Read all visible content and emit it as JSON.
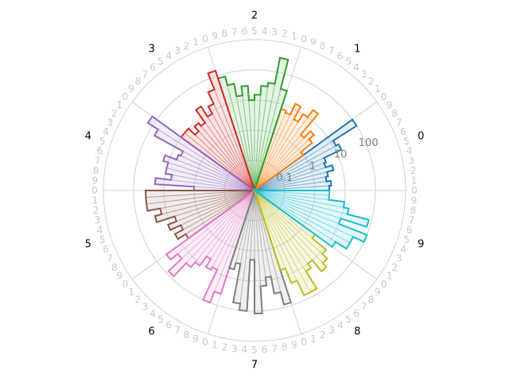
{
  "chart_data": {
    "type": "polar_histogram",
    "scale": "log",
    "r_ticks": [
      "0.1",
      "1",
      "10",
      "100"
    ],
    "r_tick_values": [
      0.1,
      1,
      10,
      100
    ],
    "r_range": [
      0.01,
      1000
    ],
    "grid": true,
    "legend": false,
    "sectors": [
      {
        "label": "0",
        "color": "#1f77b4",
        "values": [
          3.0,
          3.5,
          2.5,
          3.0,
          5.0,
          3.0,
          3.5,
          15.0,
          12.0,
          100.0
        ]
      },
      {
        "label": "1",
        "color": "#ff7f0e",
        "values": [
          1.0,
          3.0,
          5.0,
          2.5,
          20.0,
          10.0,
          5.0,
          15.0,
          6.0,
          7.0
        ]
      },
      {
        "label": "2",
        "color": "#2ca02c",
        "values": [
          30.0,
          300.0,
          40.0,
          30.0,
          15.0,
          10.0,
          30.0,
          15.0,
          40.0,
          80.0
        ]
      },
      {
        "label": "3",
        "color": "#d62728",
        "values": [
          150.0,
          40.0,
          15.0,
          8.0,
          20.0,
          6.0,
          8.0,
          5.0,
          10.0,
          10.0
        ]
      },
      {
        "label": "4",
        "color": "#9467bd",
        "values": [
          150.0,
          60.0,
          5.0,
          6.0,
          15.0,
          10.0,
          10.0,
          6.0,
          20.0,
          1.0
        ]
      },
      {
        "label": "5",
        "color": "#8c564b",
        "values": [
          40.0,
          40.0,
          40.0,
          15.0,
          25.0,
          6.0,
          12.0,
          5.0,
          10.0,
          5.0
        ]
      },
      {
        "label": "6",
        "color": "#e377c2",
        "values": [
          40.0,
          20.0,
          80.0,
          20.0,
          12.0,
          5.0,
          10.0,
          8.0,
          100.0,
          40.0
        ]
      },
      {
        "label": "7",
        "color": "#7f7f7f",
        "values": [
          5.0,
          3.0,
          60.0,
          100.0,
          2.0,
          120.0,
          15.0,
          8.0,
          30.0,
          80.0
        ]
      },
      {
        "label": "8",
        "color": "#bcbd22",
        "values": [
          6.0,
          20.0,
          70.0,
          70.0,
          15.0,
          10.0,
          30.0,
          20.0,
          12.0,
          3.0
        ]
      },
      {
        "label": "9",
        "color": "#17becf",
        "values": [
          15.0,
          40.0,
          40.0,
          100.0,
          10.0,
          80.0,
          15.0,
          10.0,
          3.0,
          3.0
        ]
      }
    ]
  }
}
